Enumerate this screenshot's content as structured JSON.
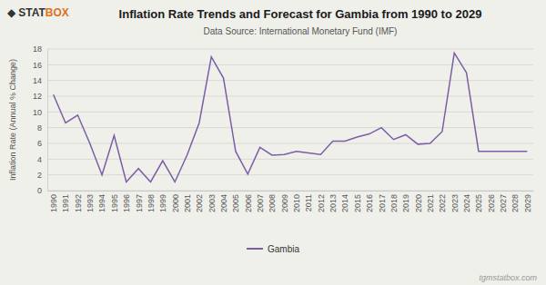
{
  "chart_data": {
    "type": "line",
    "title": "Inflation Rate Trends and Forecast for Gambia from 1990 to 2029",
    "subtitle": "Data Source: International Monetary Fund (IMF)",
    "ylabel": "Inflation Rate (Annual % Change)",
    "x": [
      1990,
      1991,
      1992,
      1993,
      1994,
      1995,
      1996,
      1997,
      1998,
      1999,
      2000,
      2001,
      2002,
      2003,
      2004,
      2005,
      2006,
      2007,
      2008,
      2009,
      2010,
      2011,
      2012,
      2013,
      2014,
      2015,
      2016,
      2017,
      2018,
      2019,
      2020,
      2021,
      2022,
      2023,
      2024,
      2025,
      2026,
      2027,
      2028,
      2029
    ],
    "series": [
      {
        "name": "Gambia",
        "color": "#7B5EA7",
        "values": [
          12.2,
          8.6,
          9.6,
          6.0,
          2.0,
          7.0,
          1.1,
          2.8,
          1.1,
          3.8,
          1.1,
          4.5,
          8.6,
          17.0,
          14.3,
          5.0,
          2.1,
          5.5,
          4.5,
          4.6,
          5.0,
          4.8,
          4.6,
          6.3,
          6.3,
          6.8,
          7.2,
          8.0,
          6.5,
          7.1,
          5.9,
          6.0,
          7.5,
          17.5,
          15.0,
          5.0,
          5.0,
          5.0,
          5.0,
          5.0
        ]
      }
    ],
    "xlim": [
      1989.5,
      2029.5
    ],
    "xticks": [
      1990,
      1991,
      1992,
      1993,
      1994,
      1995,
      1996,
      1997,
      1998,
      1999,
      2000,
      2001,
      2002,
      2003,
      2004,
      2005,
      2006,
      2007,
      2008,
      2009,
      2010,
      2011,
      2012,
      2013,
      2014,
      2015,
      2016,
      2017,
      2018,
      2019,
      2020,
      2021,
      2022,
      2023,
      2024,
      2025,
      2026,
      2027,
      2028,
      2029
    ],
    "ylim": [
      0,
      18
    ],
    "yticks": [
      0,
      2,
      4,
      6,
      8,
      10,
      12,
      14,
      16,
      18
    ],
    "grid": true,
    "legend": "bottom",
    "annotations": [
      "tgmstatbox.com",
      "◆",
      "STAT",
      "BOX"
    ]
  }
}
